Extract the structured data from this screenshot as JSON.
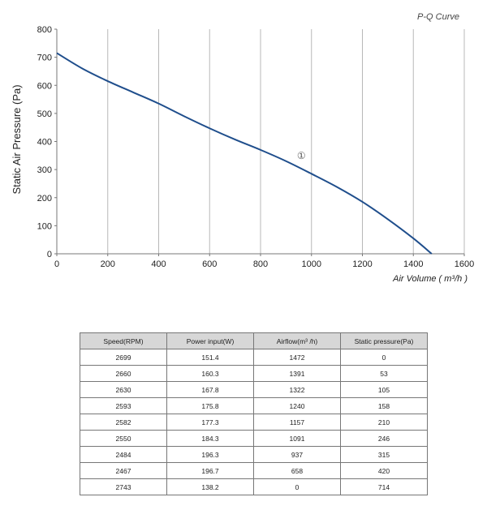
{
  "chart_data": {
    "type": "line",
    "title": "P-Q Curve",
    "xlabel": "Air Volume ( m³/h )",
    "ylabel": "Static Air Pressure  (Pa)",
    "xlim": [
      0,
      1600
    ],
    "ylim": [
      0,
      800
    ],
    "xticks": [
      0,
      200,
      400,
      600,
      800,
      1000,
      1200,
      1400,
      1600
    ],
    "yticks": [
      0,
      100,
      200,
      300,
      400,
      500,
      600,
      700,
      800
    ],
    "grid": "vertical",
    "annotation": {
      "text": "①",
      "x": 960,
      "y": 350
    },
    "series": [
      {
        "name": "",
        "color": "#1f4e8c",
        "x": [
          0,
          100,
          200,
          300,
          400,
          500,
          600,
          700,
          800,
          900,
          1000,
          1100,
          1200,
          1300,
          1400,
          1472
        ],
        "y": [
          715,
          660,
          615,
          575,
          535,
          490,
          447,
          407,
          370,
          330,
          285,
          238,
          185,
          123,
          55,
          0
        ]
      }
    ]
  },
  "table": {
    "headers": [
      "Speed(RPM)",
      "Power input(W)",
      "Airflow(m³ /h)",
      "Static pressure(Pa)"
    ],
    "rows": [
      [
        "2699",
        "151.4",
        "1472",
        "0"
      ],
      [
        "2660",
        "160.3",
        "1391",
        "53"
      ],
      [
        "2630",
        "167.8",
        "1322",
        "105"
      ],
      [
        "2593",
        "175.8",
        "1240",
        "158"
      ],
      [
        "2582",
        "177.3",
        "1157",
        "210"
      ],
      [
        "2550",
        "184.3",
        "1091",
        "246"
      ],
      [
        "2484",
        "196.3",
        "937",
        "315"
      ],
      [
        "2467",
        "196.7",
        "658",
        "420"
      ],
      [
        "2743",
        "138.2",
        "0",
        "714"
      ]
    ]
  }
}
